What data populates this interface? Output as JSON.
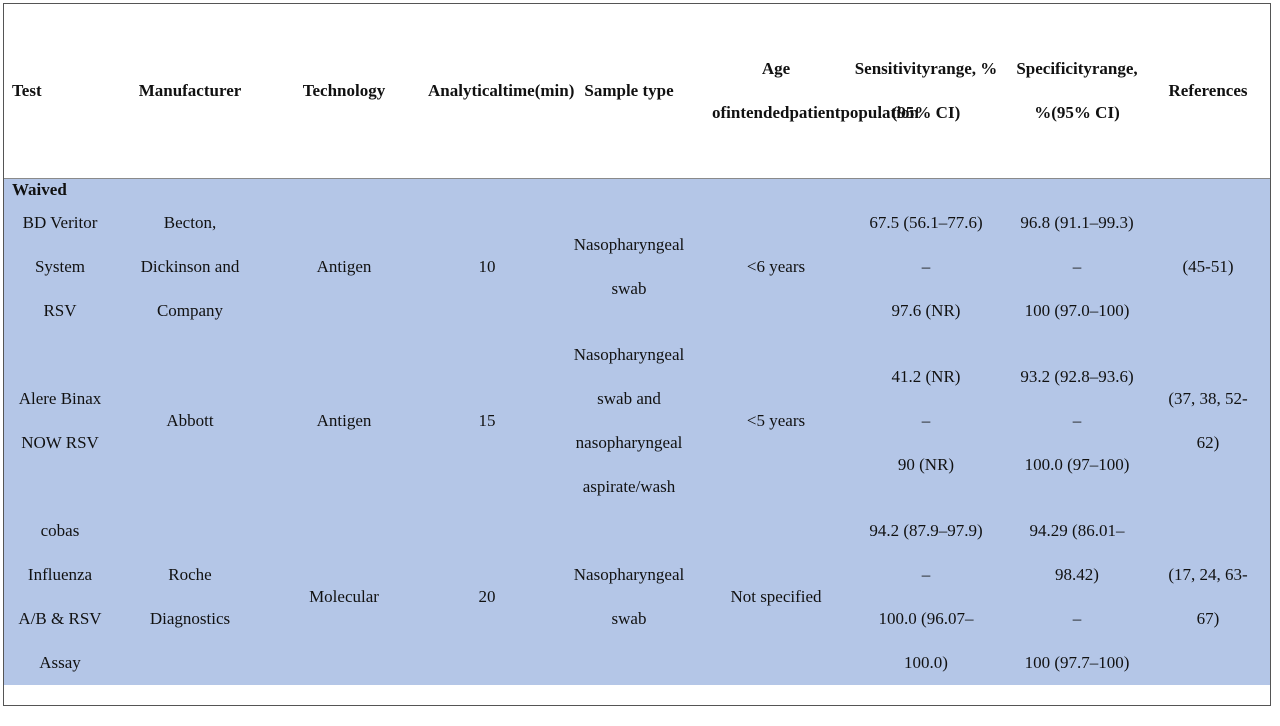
{
  "table": {
    "headers": [
      [
        "Test"
      ],
      [
        "Manufacturer"
      ],
      [
        "Technology"
      ],
      [
        "Analytical",
        "time",
        "(min)"
      ],
      [
        "Sample type"
      ],
      [
        "Age of",
        "intended",
        "patient",
        "population"
      ],
      [
        "Sensitivity",
        "range, %",
        "(95% CI)"
      ],
      [
        "Specificity",
        "range, %",
        "(95% CI)"
      ],
      [
        "References"
      ]
    ],
    "group_label": "Waived",
    "rows": [
      {
        "test": [
          "BD Veritor",
          "System",
          "RSV"
        ],
        "manufacturer": [
          "Becton,",
          "Dickinson and",
          "Company"
        ],
        "technology": [
          "Antigen"
        ],
        "time": [
          "10"
        ],
        "sample": [
          "Nasopharyngeal",
          "swab"
        ],
        "age": [
          "<6 years"
        ],
        "sensitivity": [
          "67.5 (56.1–77.6)",
          "–",
          "97.6 (NR)"
        ],
        "specificity": [
          "96.8 (91.1–99.3)",
          "–",
          "100 (97.0–100)"
        ],
        "references": [
          "(45-51)"
        ]
      },
      {
        "test": [
          "Alere Binax",
          "NOW RSV"
        ],
        "manufacturer": [
          "Abbott"
        ],
        "technology": [
          "Antigen"
        ],
        "time": [
          "15"
        ],
        "sample": [
          "Nasopharyngeal",
          "swab and",
          "nasopharyngeal",
          "aspirate/wash"
        ],
        "age": [
          "<5 years"
        ],
        "sensitivity": [
          "41.2 (NR)",
          "–",
          "90 (NR)"
        ],
        "specificity": [
          "93.2 (92.8–93.6)",
          "–",
          "100.0 (97–100)"
        ],
        "references": [
          "(37, 38, 52-",
          "62)"
        ]
      },
      {
        "test": [
          "cobas",
          "Influenza",
          "A/B & RSV",
          "Assay"
        ],
        "manufacturer": [
          "Roche",
          "Diagnostics"
        ],
        "technology": [
          "Molecular"
        ],
        "time": [
          "20"
        ],
        "sample": [
          "Nasopharyngeal",
          "swab"
        ],
        "age": [
          "Not specified"
        ],
        "sensitivity": [
          "94.2 (87.9–97.9)",
          "–",
          "100.0 (96.07–",
          "100.0)"
        ],
        "specificity": [
          "94.29 (86.01–",
          "98.42)",
          "–",
          "100 (97.7–100)"
        ],
        "references": [
          "(17, 24, 63-",
          "67)"
        ]
      }
    ]
  }
}
